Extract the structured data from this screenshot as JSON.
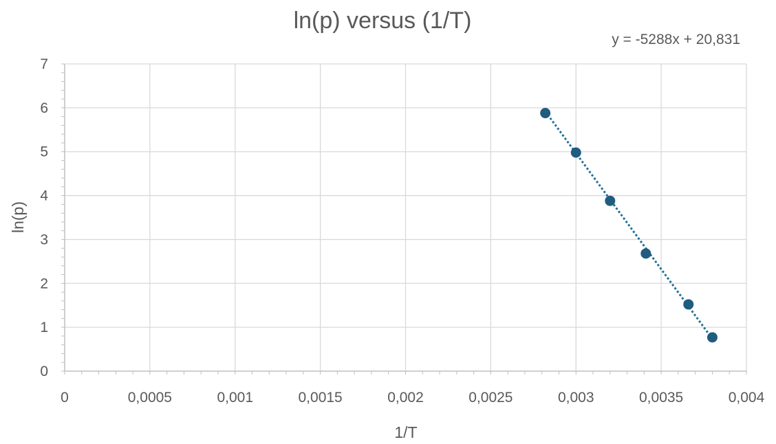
{
  "chart_data": {
    "type": "scatter",
    "title": "ln(p) versus (1/T)",
    "xlabel": "1/T",
    "ylabel": "ln(p)",
    "xlim": [
      0,
      0.004
    ],
    "ylim": [
      0,
      7
    ],
    "x_ticks": [
      0,
      0.0005,
      0.001,
      0.0015,
      0.002,
      0.0025,
      0.003,
      0.0035,
      0.004
    ],
    "x_tick_labels": [
      "0",
      "0,0005",
      "0,001",
      "0,0015",
      "0,002",
      "0,0025",
      "0,003",
      "0,0035",
      "0,004"
    ],
    "y_ticks": [
      0,
      1,
      2,
      3,
      4,
      5,
      6,
      7
    ],
    "y_tick_labels": [
      "0",
      "1",
      "2",
      "3",
      "4",
      "5",
      "6",
      "7"
    ],
    "grid": true,
    "legend": "none",
    "marker_color": "#1f5c80",
    "trendline": {
      "type": "linear",
      "style": "dotted",
      "color": "#1f6f96",
      "slope": -5288,
      "intercept": 20.831,
      "equation_label": "y = -5288x + 20,831"
    },
    "series": [
      {
        "x": [
          0.00282,
          0.003,
          0.0032,
          0.00341,
          0.00366,
          0.0038
        ],
        "y": [
          5.88,
          4.98,
          3.88,
          2.68,
          1.52,
          0.77
        ]
      }
    ]
  }
}
